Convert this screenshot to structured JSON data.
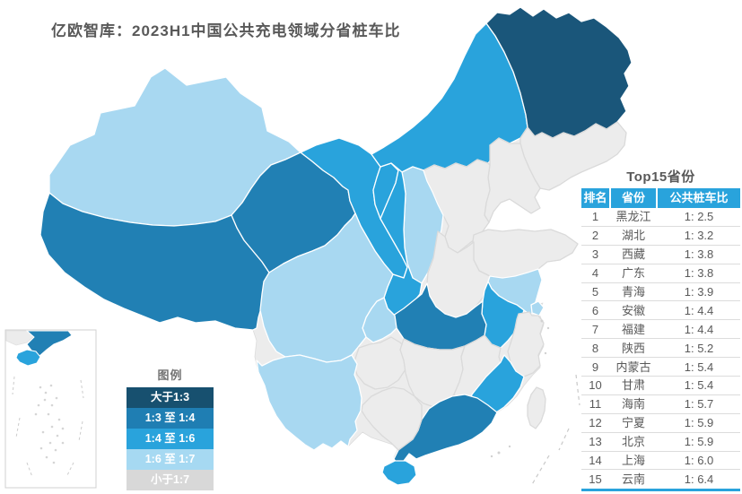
{
  "title": "亿欧智库：2023H1中国公共充电领域分省桩车比",
  "legend": {
    "title": "图例",
    "items": [
      {
        "label": "大于1:3",
        "color": "#17506F"
      },
      {
        "label": "1:3 至 1:4",
        "color": "#1F7EB3"
      },
      {
        "label": "1:4 至 1:6",
        "color": "#29A3DC"
      },
      {
        "label": "1:6 至 1:7",
        "color": "#A6D9F2"
      },
      {
        "label": "小于1:7",
        "color": "#D8D8D8"
      }
    ]
  },
  "table": {
    "title": "Top15省份",
    "headers": [
      "排名",
      "省份",
      "公共桩车比"
    ],
    "header_bg": "#29A3DC",
    "rows": [
      {
        "rank": "1",
        "province": "黑龙江",
        "ratio": "1: 2.5"
      },
      {
        "rank": "2",
        "province": "湖北",
        "ratio": "1: 3.2"
      },
      {
        "rank": "3",
        "province": "西藏",
        "ratio": "1: 3.8"
      },
      {
        "rank": "4",
        "province": "广东",
        "ratio": "1: 3.8"
      },
      {
        "rank": "5",
        "province": "青海",
        "ratio": "1: 3.9"
      },
      {
        "rank": "6",
        "province": "安徽",
        "ratio": "1: 4.4"
      },
      {
        "rank": "7",
        "province": "福建",
        "ratio": "1: 4.4"
      },
      {
        "rank": "8",
        "province": "陕西",
        "ratio": "1: 5.2"
      },
      {
        "rank": "9",
        "province": "内蒙古",
        "ratio": "1: 5.4"
      },
      {
        "rank": "10",
        "province": "甘肃",
        "ratio": "1: 5.4"
      },
      {
        "rank": "11",
        "province": "海南",
        "ratio": "1: 5.7"
      },
      {
        "rank": "12",
        "province": "宁夏",
        "ratio": "1: 5.9"
      },
      {
        "rank": "13",
        "province": "北京",
        "ratio": "1: 5.9"
      },
      {
        "rank": "14",
        "province": "上海",
        "ratio": "1: 6.0"
      },
      {
        "rank": "15",
        "province": "云南",
        "ratio": "1: 6.4"
      }
    ]
  },
  "map": {
    "category_colors": {
      "gt13": "#1A567A",
      "r13_14": "#2180B4",
      "r14_16": "#29A3DC",
      "r16_17": "#A8D8F1",
      "lt17": "#ECECEC"
    },
    "provinces": [
      {
        "id": "xinjiang",
        "name": "新疆",
        "category": "r16_17"
      },
      {
        "id": "xizang",
        "name": "西藏",
        "category": "r13_14"
      },
      {
        "id": "qinghai",
        "name": "青海",
        "category": "r13_14"
      },
      {
        "id": "gansu",
        "name": "甘肃",
        "category": "r14_16"
      },
      {
        "id": "ningxia",
        "name": "宁夏",
        "category": "r14_16"
      },
      {
        "id": "neimenggu",
        "name": "内蒙古",
        "category": "r14_16"
      },
      {
        "id": "heilongjiang",
        "name": "黑龙江",
        "category": "gt13"
      },
      {
        "id": "jilin",
        "name": "吉林",
        "category": "lt17"
      },
      {
        "id": "liaoning",
        "name": "辽宁",
        "category": "lt17"
      },
      {
        "id": "hebei",
        "name": "河北",
        "category": "lt17"
      },
      {
        "id": "beijing",
        "name": "北京",
        "category": "r14_16"
      },
      {
        "id": "tianjin",
        "name": "天津",
        "category": "r16_17"
      },
      {
        "id": "shanxi",
        "name": "山西",
        "category": "r16_17"
      },
      {
        "id": "shaanxi",
        "name": "陕西",
        "category": "r14_16"
      },
      {
        "id": "shandong",
        "name": "山东",
        "category": "lt17"
      },
      {
        "id": "henan",
        "name": "河南",
        "category": "lt17"
      },
      {
        "id": "jiangsu",
        "name": "江苏",
        "category": "r16_17"
      },
      {
        "id": "shanghai",
        "name": "上海",
        "category": "r16_17"
      },
      {
        "id": "anhui",
        "name": "安徽",
        "category": "r14_16"
      },
      {
        "id": "hubei",
        "name": "湖北",
        "category": "r13_14"
      },
      {
        "id": "chongqing",
        "name": "重庆",
        "category": "r16_17"
      },
      {
        "id": "sichuan",
        "name": "四川",
        "category": "r16_17"
      },
      {
        "id": "guizhou",
        "name": "贵州",
        "category": "lt17"
      },
      {
        "id": "hunan",
        "name": "湖南",
        "category": "lt17"
      },
      {
        "id": "jiangxi",
        "name": "江西",
        "category": "lt17"
      },
      {
        "id": "zhejiang",
        "name": "浙江",
        "category": "lt17"
      },
      {
        "id": "fujian",
        "name": "福建",
        "category": "r14_16"
      },
      {
        "id": "taiwan",
        "name": "台湾",
        "category": "lt17"
      },
      {
        "id": "guangdong",
        "name": "广东",
        "category": "r13_14"
      },
      {
        "id": "guangxi",
        "name": "广西",
        "category": "lt17"
      },
      {
        "id": "yunnan",
        "name": "云南",
        "category": "r16_17"
      },
      {
        "id": "hainan",
        "name": "海南",
        "category": "r14_16"
      }
    ]
  }
}
